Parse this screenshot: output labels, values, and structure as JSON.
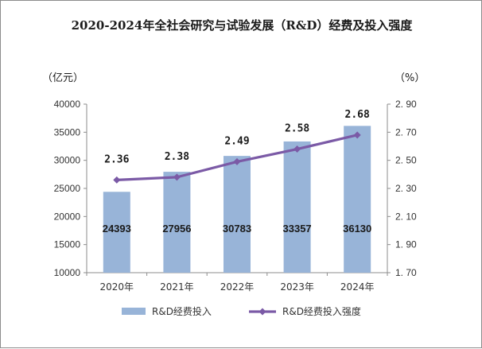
{
  "chart_data": {
    "type": "bar",
    "title": "2020-2024年全社会研究与试验发展（R&D）经费及投入强度",
    "categories": [
      "2020年",
      "2021年",
      "2022年",
      "2023年",
      "2024年"
    ],
    "series": [
      {
        "name": "R&D经费投入",
        "type": "bar",
        "axis": "left",
        "values": [
          24393,
          27956,
          30783,
          33357,
          36130
        ],
        "color": "#98b4d8"
      },
      {
        "name": "R&D经费投入强度",
        "type": "line",
        "axis": "right",
        "values": [
          2.36,
          2.38,
          2.49,
          2.58,
          2.68
        ],
        "value_labels": [
          "2.36",
          "2.38",
          "2.49",
          "2.58",
          "2.68"
        ],
        "color": "#7b5aa6"
      }
    ],
    "left_axis": {
      "label": "（亿元）",
      "range": [
        10000,
        40000
      ],
      "ticks": [
        "10000",
        "15000",
        "20000",
        "25000",
        "30000",
        "35000",
        "40000"
      ]
    },
    "right_axis": {
      "label": "（%）",
      "range": [
        1.7,
        2.9
      ],
      "ticks": [
        "1. 70",
        "1. 90",
        "2. 10",
        "2. 30",
        "2. 50",
        "2. 70",
        "2. 90"
      ]
    },
    "legend_position": "bottom",
    "grid": false
  }
}
